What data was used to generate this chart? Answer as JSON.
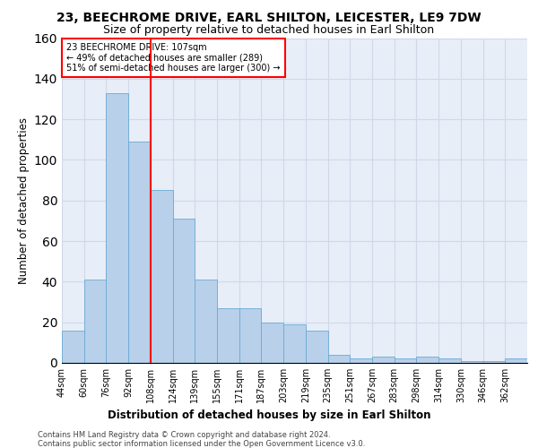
{
  "title": "23, BEECHROME DRIVE, EARL SHILTON, LEICESTER, LE9 7DW",
  "subtitle": "Size of property relative to detached houses in Earl Shilton",
  "xlabel": "Distribution of detached houses by size in Earl Shilton",
  "ylabel": "Number of detached properties",
  "categories": [
    "44sqm",
    "60sqm",
    "76sqm",
    "92sqm",
    "108sqm",
    "124sqm",
    "139sqm",
    "155sqm",
    "171sqm",
    "187sqm",
    "203sqm",
    "219sqm",
    "235sqm",
    "251sqm",
    "267sqm",
    "283sqm",
    "298sqm",
    "314sqm",
    "330sqm",
    "346sqm",
    "362sqm"
  ],
  "values": [
    16,
    41,
    133,
    109,
    85,
    71,
    41,
    27,
    27,
    20,
    19,
    16,
    4,
    2,
    3,
    2,
    3,
    2,
    1,
    1,
    2
  ],
  "bar_color": "#b8d0ea",
  "bar_edge_color": "#6aaad4",
  "grid_color": "#d0d8e8",
  "background_color": "#e8eef8",
  "vline_x_index": 4,
  "annotation_text": "23 BEECHROME DRIVE: 107sqm\n← 49% of detached houses are smaller (289)\n51% of semi-detached houses are larger (300) →",
  "annotation_box_color": "white",
  "annotation_box_edge": "red",
  "footer1": "Contains HM Land Registry data © Crown copyright and database right 2024.",
  "footer2": "Contains public sector information licensed under the Open Government Licence v3.0.",
  "title_fontsize": 10,
  "subtitle_fontsize": 9,
  "tick_fontsize": 7,
  "ylabel_fontsize": 8.5,
  "xlabel_fontsize": 8.5,
  "footer_fontsize": 6,
  "annotation_fontsize": 7,
  "ylim": [
    0,
    160
  ],
  "n_bins": 21,
  "bin_width": 1
}
